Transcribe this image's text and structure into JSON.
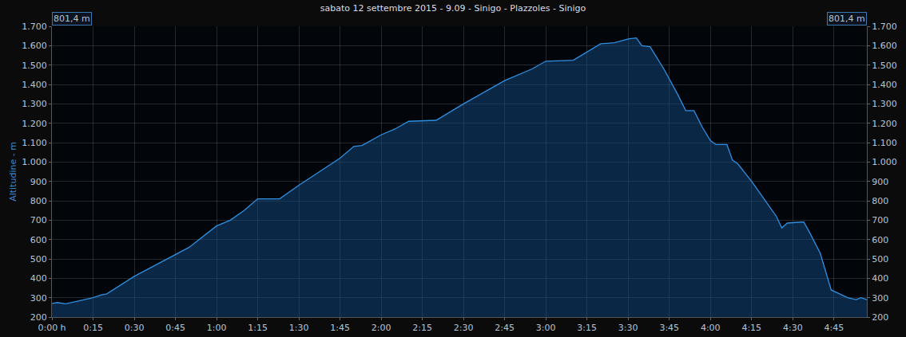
{
  "chart_data": {
    "type": "area",
    "title": "sabato 12 settembre 2015 - 9.09 - Sinigo - Plazzoles - Sinigo",
    "y_label": "Altitudine - m",
    "annotations": [
      "801,4 m",
      "801,4 m"
    ],
    "color": "#2f8fe0",
    "grid": true,
    "x": [
      0,
      2,
      5,
      10,
      15,
      18,
      20,
      30,
      45,
      50,
      60,
      65,
      70,
      75,
      83,
      90,
      105,
      110,
      113,
      120,
      125,
      130,
      140,
      150,
      165,
      175,
      180,
      190,
      200,
      205,
      210,
      213,
      215,
      218,
      223,
      228,
      231,
      234,
      237,
      240,
      242,
      246,
      248,
      250,
      255,
      260,
      264,
      266,
      268,
      273,
      274,
      276,
      280,
      284,
      287,
      290,
      293,
      295,
      297
    ],
    "values": [
      270,
      275,
      268,
      285,
      300,
      315,
      320,
      410,
      520,
      560,
      670,
      700,
      750,
      810,
      810,
      880,
      1020,
      1080,
      1085,
      1140,
      1170,
      1210,
      1215,
      1300,
      1420,
      1480,
      1520,
      1525,
      1610,
      1615,
      1635,
      1640,
      1600,
      1595,
      1480,
      1350,
      1265,
      1265,
      1180,
      1110,
      1090,
      1090,
      1010,
      990,
      900,
      800,
      720,
      660,
      685,
      690,
      690,
      640,
      530,
      340,
      320,
      300,
      290,
      300,
      290
    ],
    "xlim": [
      0,
      297
    ],
    "xticks": [
      {
        "value": 0,
        "label": "0:00 h"
      },
      {
        "value": 15,
        "label": "0:15"
      },
      {
        "value": 30,
        "label": "0:30"
      },
      {
        "value": 45,
        "label": "0:45"
      },
      {
        "value": 60,
        "label": "1:00"
      },
      {
        "value": 75,
        "label": "1:15"
      },
      {
        "value": 90,
        "label": "1:30"
      },
      {
        "value": 105,
        "label": "1:45"
      },
      {
        "value": 120,
        "label": "2:00"
      },
      {
        "value": 135,
        "label": "2:15"
      },
      {
        "value": 150,
        "label": "2:30"
      },
      {
        "value": 165,
        "label": "2:45"
      },
      {
        "value": 180,
        "label": "3:00"
      },
      {
        "value": 195,
        "label": "3:15"
      },
      {
        "value": 210,
        "label": "3:30"
      },
      {
        "value": 225,
        "label": "3:45"
      },
      {
        "value": 240,
        "label": "4:00"
      },
      {
        "value": 255,
        "label": "4:15"
      },
      {
        "value": 270,
        "label": "4:30"
      },
      {
        "value": 285,
        "label": "4:45"
      }
    ],
    "ylim": [
      200,
      1700
    ],
    "yticks": [
      200,
      300,
      400,
      500,
      600,
      700,
      800,
      900,
      {
        "value": 1000,
        "label": "1.000"
      },
      {
        "value": 1100,
        "label": "1.100"
      },
      {
        "value": 1200,
        "label": "1.200"
      },
      {
        "value": 1300,
        "label": "1.300"
      },
      {
        "value": 1400,
        "label": "1.400"
      },
      {
        "value": 1500,
        "label": "1.500"
      },
      {
        "value": 1600,
        "label": "1.600"
      },
      {
        "value": 1700,
        "label": "1.700"
      }
    ],
    "y2lim": [
      200,
      1700
    ],
    "y2ticks": [
      200,
      300,
      400,
      500,
      600,
      700,
      800,
      900,
      {
        "value": 1000,
        "label": "1.000"
      },
      {
        "value": 1100,
        "label": "1.100"
      },
      {
        "value": 1200,
        "label": "1.200"
      },
      {
        "value": 1300,
        "label": "1.300"
      },
      {
        "value": 1400,
        "label": "1.400"
      },
      {
        "value": 1500,
        "label": "1.500"
      },
      {
        "value": 1600,
        "label": "1.600"
      },
      {
        "value": 1700,
        "label": "1.700"
      }
    ]
  }
}
